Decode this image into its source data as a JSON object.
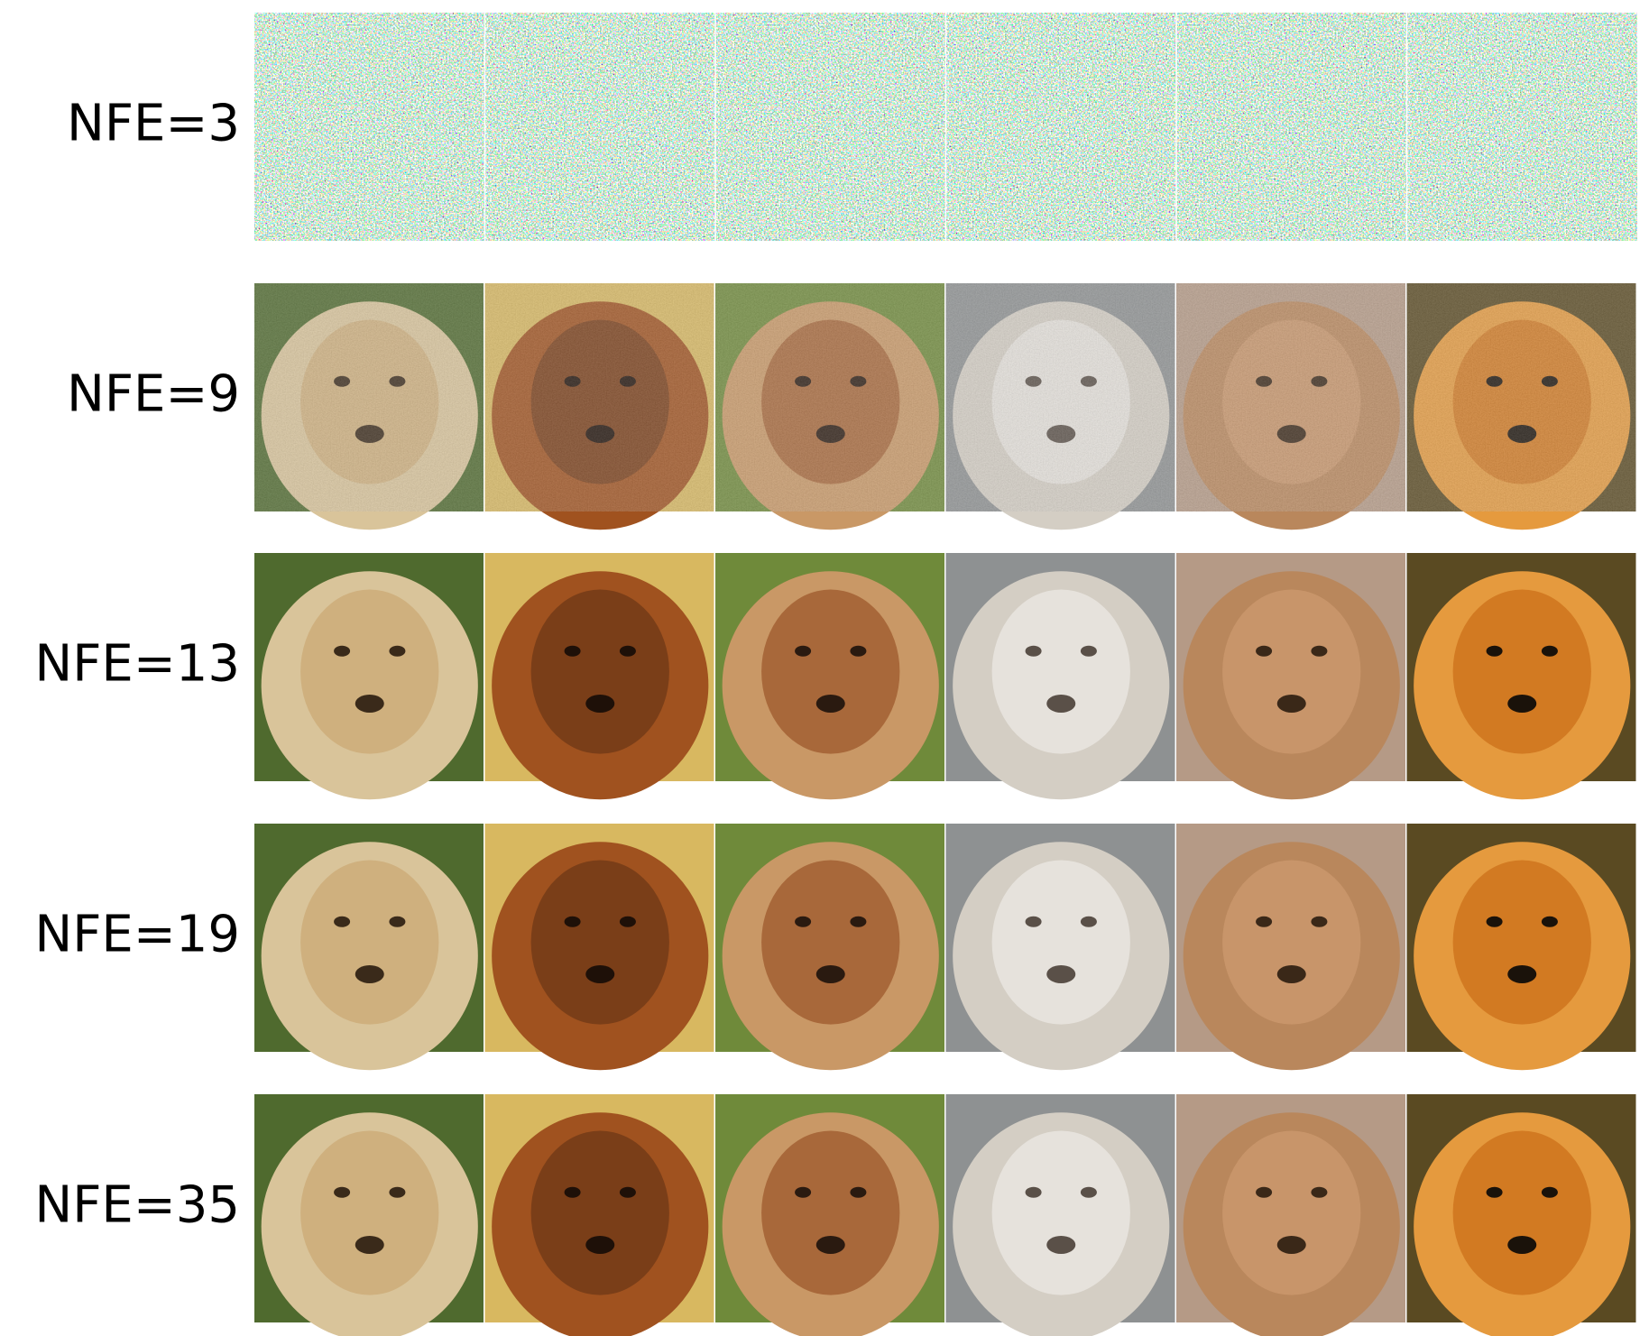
{
  "rows": [
    {
      "label": "NFE=3"
    },
    {
      "label": "NFE=9"
    },
    {
      "label": "NFE=13"
    },
    {
      "label": "NFE=19"
    },
    {
      "label": "NFE=35"
    }
  ]
}
